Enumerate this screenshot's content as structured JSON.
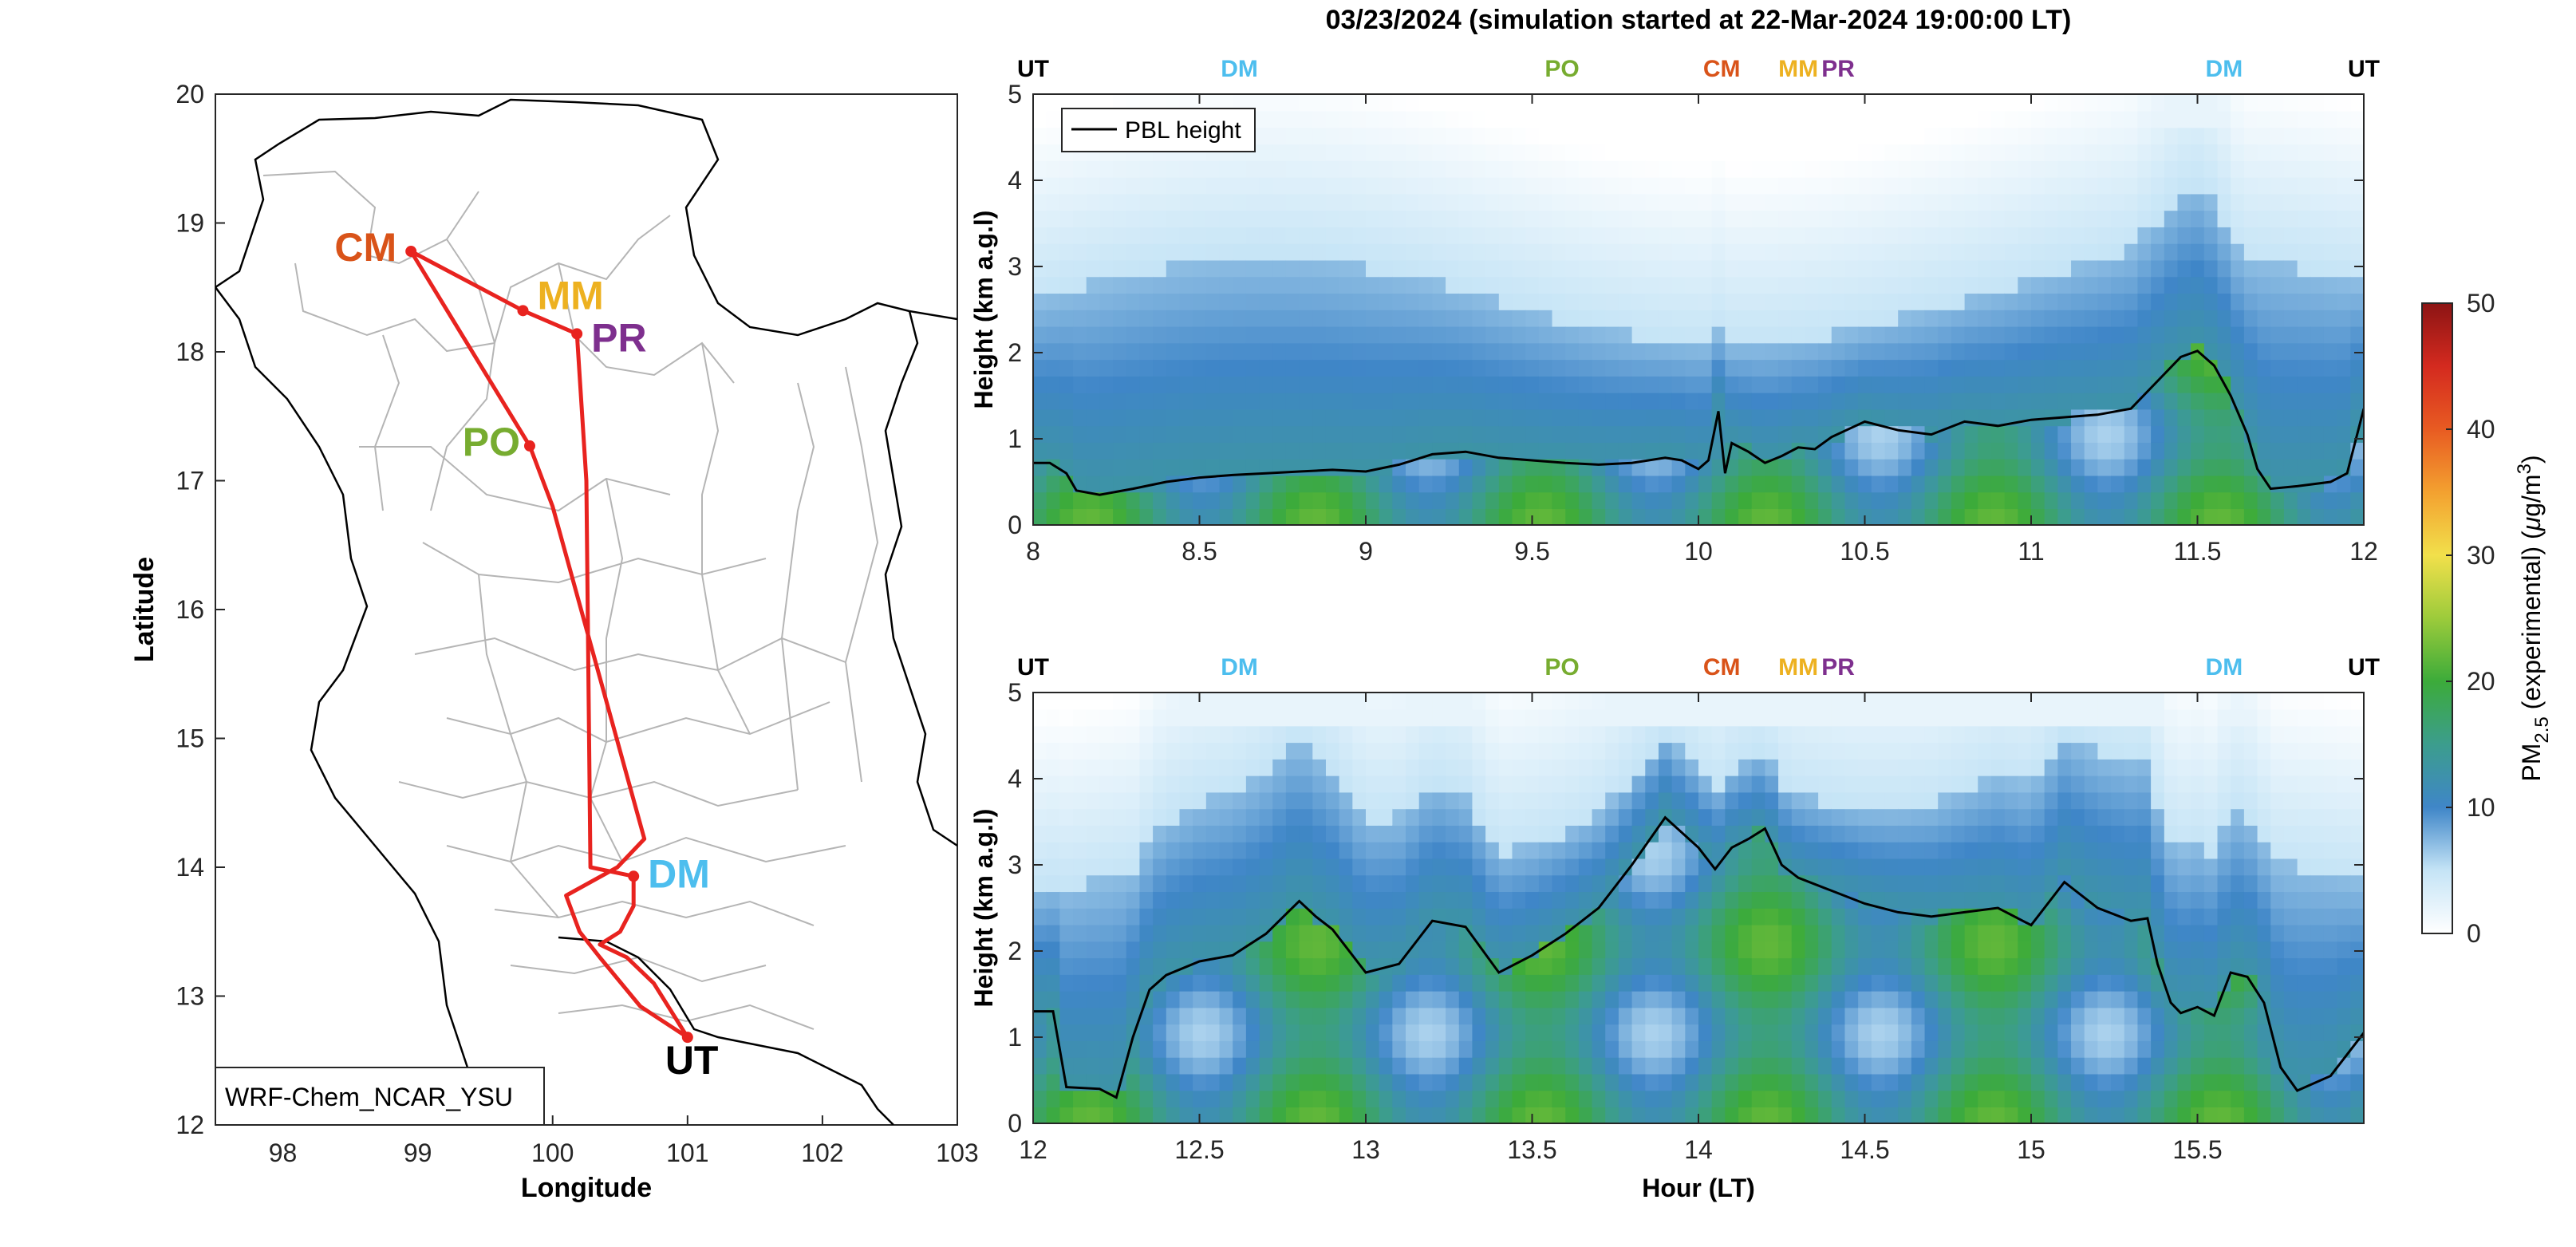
{
  "figure_title": "03/23/2024 (simulation started at 22-Mar-2024 19:00:00 LT)",
  "colors": {
    "route": "#e8231f",
    "CM": "#d95319",
    "MM": "#edb120",
    "PR": "#7e2f8e",
    "PO": "#77ac30",
    "DM": "#4dbeee",
    "UT": "#000000",
    "pbl": "#000000"
  },
  "map": {
    "xlabel": "Longitude",
    "ylabel": "Latitude",
    "xlim": [
      97.5,
      103
    ],
    "ylim": [
      12,
      20
    ],
    "xticks": [
      98,
      99,
      100,
      101,
      102,
      103
    ],
    "yticks": [
      12,
      13,
      14,
      15,
      16,
      17,
      18,
      19,
      20
    ],
    "model_label": "WRF-Chem_NCAR_YSU",
    "stations": [
      {
        "code": "CM",
        "lon": 98.95,
        "lat": 18.78
      },
      {
        "code": "MM",
        "lon": 99.78,
        "lat": 18.32
      },
      {
        "code": "PR",
        "lon": 100.18,
        "lat": 18.14
      },
      {
        "code": "PO",
        "lon": 99.83,
        "lat": 17.27
      },
      {
        "code": "DM",
        "lon": 100.6,
        "lat": 13.93
      },
      {
        "code": "UT",
        "lon": 101.0,
        "lat": 12.68
      }
    ],
    "route": [
      [
        101.0,
        12.68
      ],
      [
        100.65,
        12.92
      ],
      [
        100.35,
        13.3
      ],
      [
        100.2,
        13.5
      ],
      [
        100.1,
        13.78
      ],
      [
        100.48,
        14.0
      ],
      [
        100.68,
        14.22
      ],
      [
        100.0,
        16.8
      ],
      [
        99.83,
        17.27
      ],
      [
        98.95,
        18.78
      ],
      [
        99.78,
        18.32
      ],
      [
        100.18,
        18.14
      ],
      [
        100.25,
        17.0
      ],
      [
        100.28,
        14.0
      ],
      [
        100.6,
        13.93
      ],
      [
        100.6,
        13.7
      ],
      [
        100.5,
        13.5
      ],
      [
        100.35,
        13.4
      ],
      [
        100.55,
        13.3
      ],
      [
        100.75,
        13.1
      ],
      [
        101.0,
        12.68
      ]
    ]
  },
  "chart_data": [
    {
      "type": "heatmap",
      "panel": "top",
      "xlim": [
        8,
        12
      ],
      "xticks": [
        8,
        8.5,
        9,
        9.5,
        10,
        10.5,
        11,
        11.5,
        12
      ],
      "ylabel": "Height (km a.g.l)",
      "ylim": [
        0,
        5
      ],
      "yticks": [
        0,
        1,
        2,
        3,
        4,
        5
      ],
      "legend": {
        "label": "PBL height",
        "placement": "top-left"
      },
      "station_markers": [
        {
          "code": "UT",
          "x": 8.0
        },
        {
          "code": "DM",
          "x": 8.62
        },
        {
          "code": "PO",
          "x": 9.59
        },
        {
          "code": "CM",
          "x": 10.07
        },
        {
          "code": "MM",
          "x": 10.3
        },
        {
          "code": "PR",
          "x": 10.42
        },
        {
          "code": "DM",
          "x": 11.58
        },
        {
          "code": "UT",
          "x": 12.0
        }
      ],
      "pbl_height": {
        "x": [
          8.0,
          8.05,
          8.1,
          8.13,
          8.2,
          8.3,
          8.4,
          8.5,
          8.6,
          8.7,
          8.8,
          8.9,
          9.0,
          9.1,
          9.2,
          9.3,
          9.4,
          9.5,
          9.6,
          9.7,
          9.8,
          9.9,
          9.95,
          10.0,
          10.03,
          10.06,
          10.08,
          10.1,
          10.15,
          10.2,
          10.25,
          10.3,
          10.35,
          10.4,
          10.5,
          10.6,
          10.7,
          10.8,
          10.9,
          11.0,
          11.1,
          11.2,
          11.3,
          11.4,
          11.45,
          11.5,
          11.55,
          11.6,
          11.65,
          11.68,
          11.72,
          11.8,
          11.9,
          11.95,
          12.0
        ],
        "y": [
          0.72,
          0.72,
          0.6,
          0.4,
          0.35,
          0.42,
          0.5,
          0.55,
          0.58,
          0.6,
          0.62,
          0.64,
          0.62,
          0.7,
          0.82,
          0.85,
          0.78,
          0.75,
          0.72,
          0.7,
          0.72,
          0.78,
          0.75,
          0.65,
          0.75,
          1.32,
          0.6,
          0.95,
          0.85,
          0.72,
          0.8,
          0.9,
          0.88,
          1.02,
          1.2,
          1.1,
          1.05,
          1.2,
          1.15,
          1.22,
          1.25,
          1.28,
          1.35,
          1.75,
          1.95,
          2.02,
          1.85,
          1.5,
          1.05,
          0.65,
          0.42,
          0.45,
          0.5,
          0.6,
          1.35
        ]
      }
    },
    {
      "type": "heatmap",
      "panel": "bottom",
      "xlabel": "Hour (LT)",
      "xlim": [
        12,
        16
      ],
      "xticks": [
        12,
        12.5,
        13,
        13.5,
        14,
        14.5,
        15,
        15.5
      ],
      "ylabel": "Height (km a.g.l)",
      "ylim": [
        0,
        5
      ],
      "yticks": [
        0,
        1,
        2,
        3,
        4,
        5
      ],
      "station_markers": [
        {
          "code": "UT",
          "x": 12.0
        },
        {
          "code": "DM",
          "x": 12.62
        },
        {
          "code": "PO",
          "x": 13.59
        },
        {
          "code": "CM",
          "x": 14.07
        },
        {
          "code": "MM",
          "x": 14.3
        },
        {
          "code": "PR",
          "x": 14.42
        },
        {
          "code": "DM",
          "x": 15.58
        },
        {
          "code": "UT",
          "x": 16.0
        }
      ],
      "pbl_height": {
        "x": [
          12.0,
          12.06,
          12.1,
          12.2,
          12.25,
          12.3,
          12.35,
          12.4,
          12.5,
          12.6,
          12.7,
          12.8,
          12.85,
          12.9,
          13.0,
          13.1,
          13.2,
          13.3,
          13.4,
          13.5,
          13.6,
          13.7,
          13.8,
          13.9,
          14.0,
          14.05,
          14.1,
          14.15,
          14.2,
          14.25,
          14.3,
          14.4,
          14.5,
          14.6,
          14.7,
          14.8,
          14.9,
          15.0,
          15.1,
          15.2,
          15.3,
          15.35,
          15.38,
          15.42,
          15.45,
          15.5,
          15.55,
          15.6,
          15.65,
          15.7,
          15.75,
          15.8,
          15.9,
          16.0
        ],
        "y": [
          1.3,
          1.3,
          0.42,
          0.4,
          0.3,
          1.0,
          1.55,
          1.72,
          1.88,
          1.95,
          2.2,
          2.58,
          2.4,
          2.25,
          1.75,
          1.85,
          2.35,
          2.28,
          1.75,
          1.95,
          2.2,
          2.5,
          3.0,
          3.55,
          3.2,
          2.95,
          3.2,
          3.3,
          3.42,
          3.0,
          2.85,
          2.7,
          2.55,
          2.45,
          2.4,
          2.45,
          2.5,
          2.3,
          2.8,
          2.5,
          2.35,
          2.38,
          1.85,
          1.4,
          1.28,
          1.35,
          1.25,
          1.75,
          1.7,
          1.4,
          0.65,
          0.38,
          0.55,
          1.05
        ]
      }
    }
  ],
  "colorbar": {
    "label": "PM2.5 (experimental) (μg/m3)",
    "label_parts": {
      "prefix": "PM",
      "subscript": "2.5",
      "middle": " (experimental) (",
      "mu": "μ",
      "unit": "g/m",
      "superscript": "3",
      "suffix": ")"
    },
    "range": [
      0,
      50
    ],
    "ticks": [
      0,
      10,
      20,
      30,
      40,
      50
    ]
  }
}
